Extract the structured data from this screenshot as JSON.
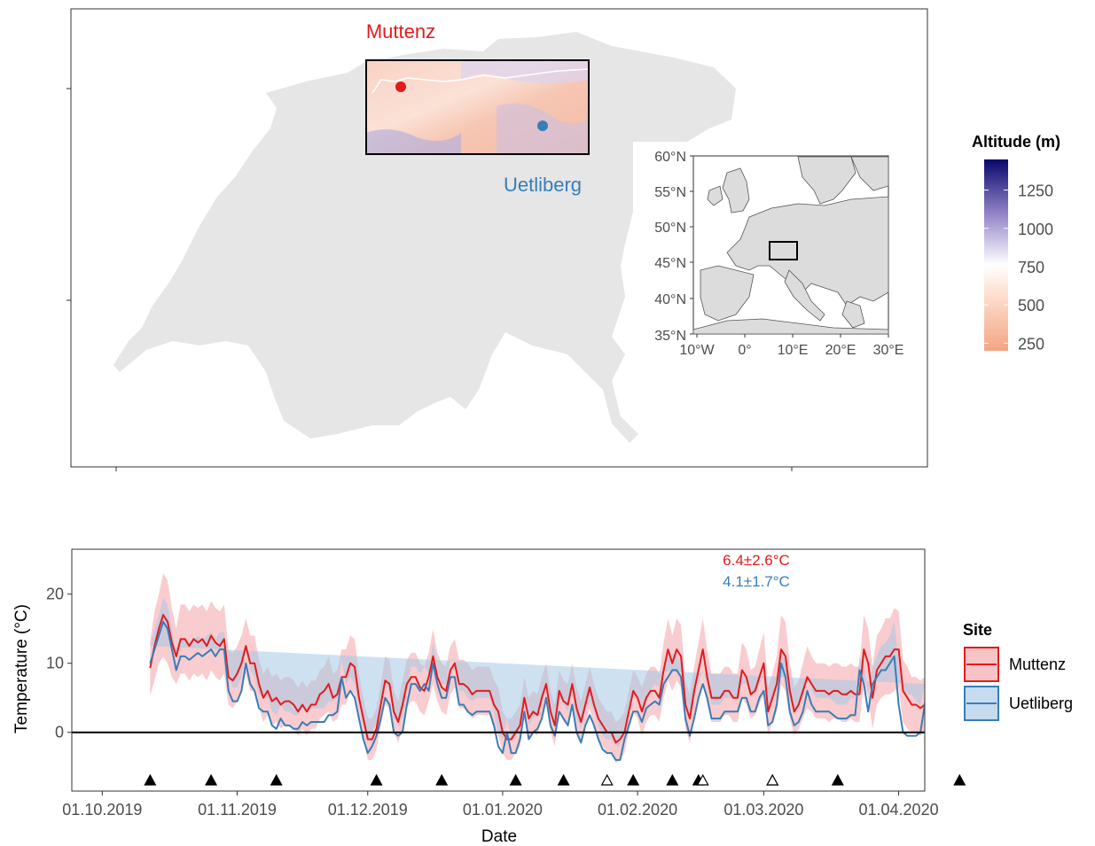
{
  "map_panel": {
    "sites": [
      {
        "name": "Muttenz",
        "color": "#e41a1c"
      },
      {
        "name": "Uetliberg",
        "color": "#377eb8"
      }
    ],
    "altitude_legend": {
      "title": "Altitude (m)",
      "ticks": [
        "1250",
        "1000",
        "750",
        "500",
        "250"
      ],
      "tick_values": [
        1250,
        1000,
        750,
        500,
        250
      ],
      "range": [
        200,
        1450
      ],
      "colors": [
        "#f4a582",
        "#ffffff",
        "#7b68be",
        "#08086b"
      ]
    },
    "inset": {
      "lat_ticks": [
        "60°N",
        "55°N",
        "50°N",
        "45°N",
        "40°N",
        "35°N"
      ],
      "lon_ticks": [
        "10°W",
        "0°",
        "10°E",
        "20°E",
        "30°E"
      ]
    }
  },
  "chart_data": {
    "type": "line",
    "title": "",
    "xlabel": "Date",
    "ylabel": "Temperature (°C)",
    "x_tick_labels": [
      "01.10.2019",
      "01.11.2019",
      "01.12.2019",
      "01.01.2020",
      "01.02.2020",
      "01.03.2020",
      "01.04.2020"
    ],
    "x_tick_days": [
      0,
      31,
      61,
      92,
      123,
      152,
      183
    ],
    "y_ticks": [
      0,
      10,
      20
    ],
    "ylim": [
      -8.5,
      26.5
    ],
    "xlim_days": [
      -7,
      189
    ],
    "zero_line": 0,
    "legend_title": "Site",
    "annotations": [
      {
        "text": "6.4±2.6°C",
        "color": "#e41a1c"
      },
      {
        "text": "4.1±1.7°C",
        "color": "#377eb8"
      }
    ],
    "series": [
      {
        "name": "Muttenz",
        "color": "#e41a1c",
        "band_color": "#f4a3a8",
        "start_day": 11,
        "mean": [
          9.3,
          12.5,
          15,
          17,
          16,
          13,
          11,
          13.5,
          13.5,
          12.5,
          13.5,
          13,
          13.5,
          12.5,
          14,
          13,
          12.5,
          13.5,
          8,
          7.5,
          8.5,
          10,
          12.5,
          10,
          10,
          7,
          5,
          6,
          4.5,
          5,
          4,
          4.5,
          4.5,
          4,
          3,
          4,
          3,
          4,
          4,
          5.5,
          6,
          7,
          5,
          5.5,
          8,
          8,
          10,
          9.5,
          5,
          2,
          -1,
          -1,
          0.5,
          4,
          7.5,
          7,
          3,
          1.5,
          4,
          7,
          8,
          8,
          6.5,
          6,
          8,
          11,
          8,
          6.5,
          6,
          9,
          10,
          7,
          7,
          6.5,
          5.5,
          6,
          6,
          6,
          6,
          4,
          3,
          0,
          -1,
          -1,
          0,
          1,
          5,
          2,
          3,
          2.5,
          5,
          7,
          3,
          1,
          6,
          4.5,
          4,
          7,
          3.5,
          1.5,
          4,
          6.5,
          4,
          2,
          1,
          0,
          0,
          -1.5,
          -1,
          0,
          3,
          6,
          5,
          3,
          5,
          6,
          6,
          5,
          9,
          12,
          10,
          12,
          11,
          4,
          2,
          6,
          9,
          12,
          8,
          5,
          5,
          5,
          6,
          6,
          5,
          5,
          9,
          8,
          5.5,
          6,
          8,
          10,
          3,
          5,
          7,
          12,
          11,
          6,
          3,
          4,
          6,
          8,
          7,
          6,
          6,
          6,
          5.5,
          6,
          6,
          5.5,
          5.5,
          6,
          5.5,
          5.5,
          12,
          10,
          5,
          9,
          10,
          11,
          11,
          12,
          12,
          6,
          5,
          4,
          4,
          3.5,
          4,
          7,
          10,
          3
        ],
        "band_half_width": [
          4,
          5,
          5,
          6,
          6,
          5,
          4,
          5,
          5,
          5,
          5,
          5,
          5,
          5,
          5,
          5,
          5,
          5,
          4,
          4,
          4,
          4,
          4,
          4,
          4,
          3.5,
          3.5,
          3.5,
          3.5,
          3.5,
          3.5,
          3.5,
          3.5,
          3.5,
          3.5,
          3.5,
          3.5,
          3.5,
          3.5,
          3.5,
          3.5,
          4,
          3.5,
          3.5,
          4,
          4,
          4,
          4,
          3.5,
          3,
          3,
          3,
          3,
          3,
          3.5,
          3.5,
          3,
          3,
          3.5,
          3.5,
          3.5,
          3.5,
          3.5,
          3.5,
          3.5,
          4,
          3.5,
          3.5,
          3.5,
          3.5,
          3.5,
          3.5,
          3.5,
          3.5,
          3.5,
          3.5,
          3.5,
          3.5,
          3.5,
          3.5,
          3.5,
          3,
          3,
          3,
          3,
          3,
          3,
          3,
          3,
          3,
          3,
          3,
          3,
          3,
          3,
          3,
          3,
          3,
          3,
          3,
          3,
          3,
          3,
          3,
          3,
          3,
          3,
          3,
          3,
          3,
          3,
          3,
          3,
          3.5,
          3.5,
          3.5,
          3.5,
          3.5,
          4,
          4.5,
          4,
          4.5,
          4.5,
          3.5,
          3.5,
          3.5,
          4,
          4.5,
          4,
          3.5,
          3.5,
          3.5,
          3.5,
          3.5,
          3.5,
          3.5,
          4,
          4,
          3.5,
          3.5,
          4,
          4.5,
          3.5,
          3.5,
          4,
          5,
          5,
          4,
          3.5,
          3.5,
          4,
          4.5,
          4,
          4,
          4,
          4,
          4,
          4,
          4,
          4,
          4,
          4,
          4,
          4,
          5,
          5,
          4.5,
          5,
          5,
          5.5,
          5.5,
          6,
          5.5,
          4.5,
          4.5,
          4,
          4,
          4,
          4,
          4,
          5,
          4
        ]
      },
      {
        "name": "Uetliberg",
        "color": "#377eb8",
        "band_color": "#a6c8e4",
        "start_day": 11,
        "mean": [
          10,
          12,
          14,
          16,
          15,
          12,
          9,
          11,
          11,
          10.5,
          11,
          11.5,
          11,
          11.5,
          12,
          11,
          12,
          12,
          6,
          4.5,
          4.5,
          6,
          10,
          7,
          6,
          3.5,
          3,
          3,
          1,
          0.5,
          2,
          1,
          1,
          0.5,
          0.5,
          1.5,
          1,
          1.5,
          1.5,
          1.5,
          1.5,
          2.5,
          2.5,
          3,
          8,
          5,
          6,
          5,
          2,
          -1,
          -3,
          -2,
          -0.5,
          2,
          5,
          4,
          0,
          -0.5,
          0,
          4,
          7,
          7,
          6,
          7,
          6,
          10,
          7,
          5,
          5,
          8,
          8,
          4,
          4,
          3,
          2.5,
          3,
          3,
          3,
          3,
          1,
          -2,
          -3,
          0,
          -3,
          -3,
          -1,
          3,
          -1,
          0,
          0.5,
          2,
          5,
          1,
          -0.5,
          3,
          2,
          1,
          4,
          0,
          -1.5,
          1,
          2.5,
          1,
          -1,
          -2.5,
          -3,
          -3,
          -4,
          -4,
          -1,
          1,
          3,
          3,
          1.5,
          3.5,
          4,
          4.5,
          4,
          7,
          8,
          9,
          9,
          8,
          2,
          -0.5,
          2,
          5,
          7,
          5,
          2,
          2,
          2,
          3,
          3,
          3,
          3,
          5,
          5,
          3,
          3,
          5,
          6,
          1,
          1.5,
          4,
          10,
          8,
          3,
          1,
          1.5,
          3,
          6,
          4,
          3,
          3,
          3,
          3,
          2.5,
          2,
          2,
          2,
          2.5,
          2.5,
          9,
          7,
          3,
          7,
          8,
          9,
          9,
          10,
          11,
          4,
          0,
          -0.5,
          -0.5,
          -0.5,
          0,
          4,
          8,
          -1
        ],
        "band_half_width": [
          2.5,
          3,
          3,
          3.5,
          3.5,
          3,
          2.5,
          2.5,
          2.5,
          2.5,
          2.5,
          2.5,
          2.5,
          2.5,
          2.5,
          2.5,
          2.5,
          2.5,
          2,
          2,
          2,
          2,
          2.5,
          2,
          2,
          2,
          2,
          2,
          2,
          2,
          2,
          2,
          2,
          2,
          2,
          2,
          2,
          2,
          2,
          2,
          2,
          2,
          2,
          2,
          2.5,
          2,
          2,
          2,
          2,
          2,
          2,
          2,
          2,
          2,
          2,
          2,
          2,
          2,
          2,
          2,
          2.5,
          2.5,
          2.5,
          2.5,
          2.5,
          3,
          2.5,
          2,
          2,
          2.5,
          2.5,
          2,
          2,
          2,
          2,
          2,
          2,
          2,
          2,
          2,
          2,
          2,
          2,
          2,
          2,
          2,
          2,
          2,
          2,
          2,
          2,
          2,
          2,
          2,
          2,
          2,
          2,
          2,
          2,
          2,
          2,
          2,
          2,
          2,
          2,
          2,
          2,
          2,
          2,
          2,
          2,
          2,
          2,
          2,
          2,
          2,
          2.5,
          2.5,
          2.5,
          2.5,
          2.5,
          2,
          2,
          2,
          2,
          2.5,
          2,
          2,
          2,
          2,
          2,
          2,
          2,
          2,
          2,
          2,
          2,
          2,
          2,
          2.5,
          2,
          2,
          2,
          3,
          2.5,
          2,
          2,
          2,
          2,
          2.5,
          2,
          2,
          2,
          2,
          2,
          2,
          2,
          2,
          2,
          2,
          2,
          2.5,
          2.5,
          2,
          2.5,
          2.5,
          2.5,
          3,
          3.5,
          4,
          4,
          5,
          6,
          6,
          6,
          6,
          5,
          4,
          3
        ]
      }
    ],
    "event_markers": {
      "filled_days": [
        11,
        25,
        40,
        63,
        78,
        95,
        106,
        122,
        131,
        137,
        154,
        169,
        197
      ],
      "open_days": [
        116,
        138,
        154
      ]
    }
  }
}
